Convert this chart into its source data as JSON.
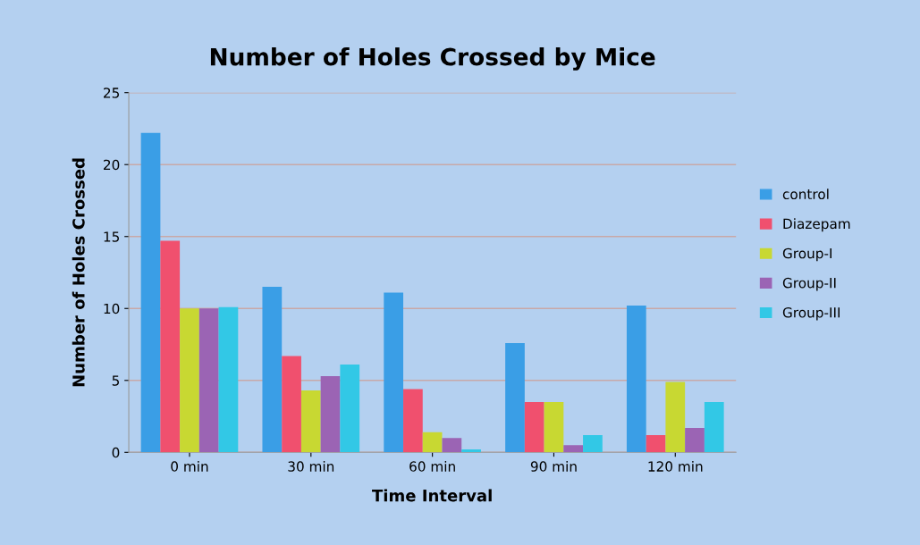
{
  "chart_data": {
    "type": "bar",
    "title": "Number of Holes Crossed by Mice",
    "xlabel": "Time Interval",
    "ylabel": "Number of Holes Crossed",
    "categories": [
      "0 min",
      "30 min",
      "60 min",
      "90 min",
      "120 min"
    ],
    "series": [
      {
        "name": "control",
        "color": "#3a9ee6",
        "values": [
          22.2,
          11.5,
          11.1,
          7.6,
          10.2
        ]
      },
      {
        "name": "Diazepam",
        "color": "#f0506e",
        "values": [
          14.7,
          6.7,
          4.4,
          3.5,
          1.2
        ]
      },
      {
        "name": "Group-I",
        "color": "#c8d832",
        "values": [
          10.0,
          4.3,
          1.4,
          3.5,
          4.9
        ]
      },
      {
        "name": "Group-II",
        "color": "#9b64b4",
        "values": [
          10.0,
          5.3,
          1.0,
          0.5,
          1.7
        ]
      },
      {
        "name": "Group-III",
        "color": "#32c8e6",
        "values": [
          10.1,
          6.1,
          0.2,
          1.2,
          3.5
        ]
      }
    ],
    "ylim": [
      0,
      25
    ],
    "yticks": [
      0,
      5,
      10,
      15,
      20,
      25
    ],
    "grid": "y",
    "legend": "right"
  }
}
